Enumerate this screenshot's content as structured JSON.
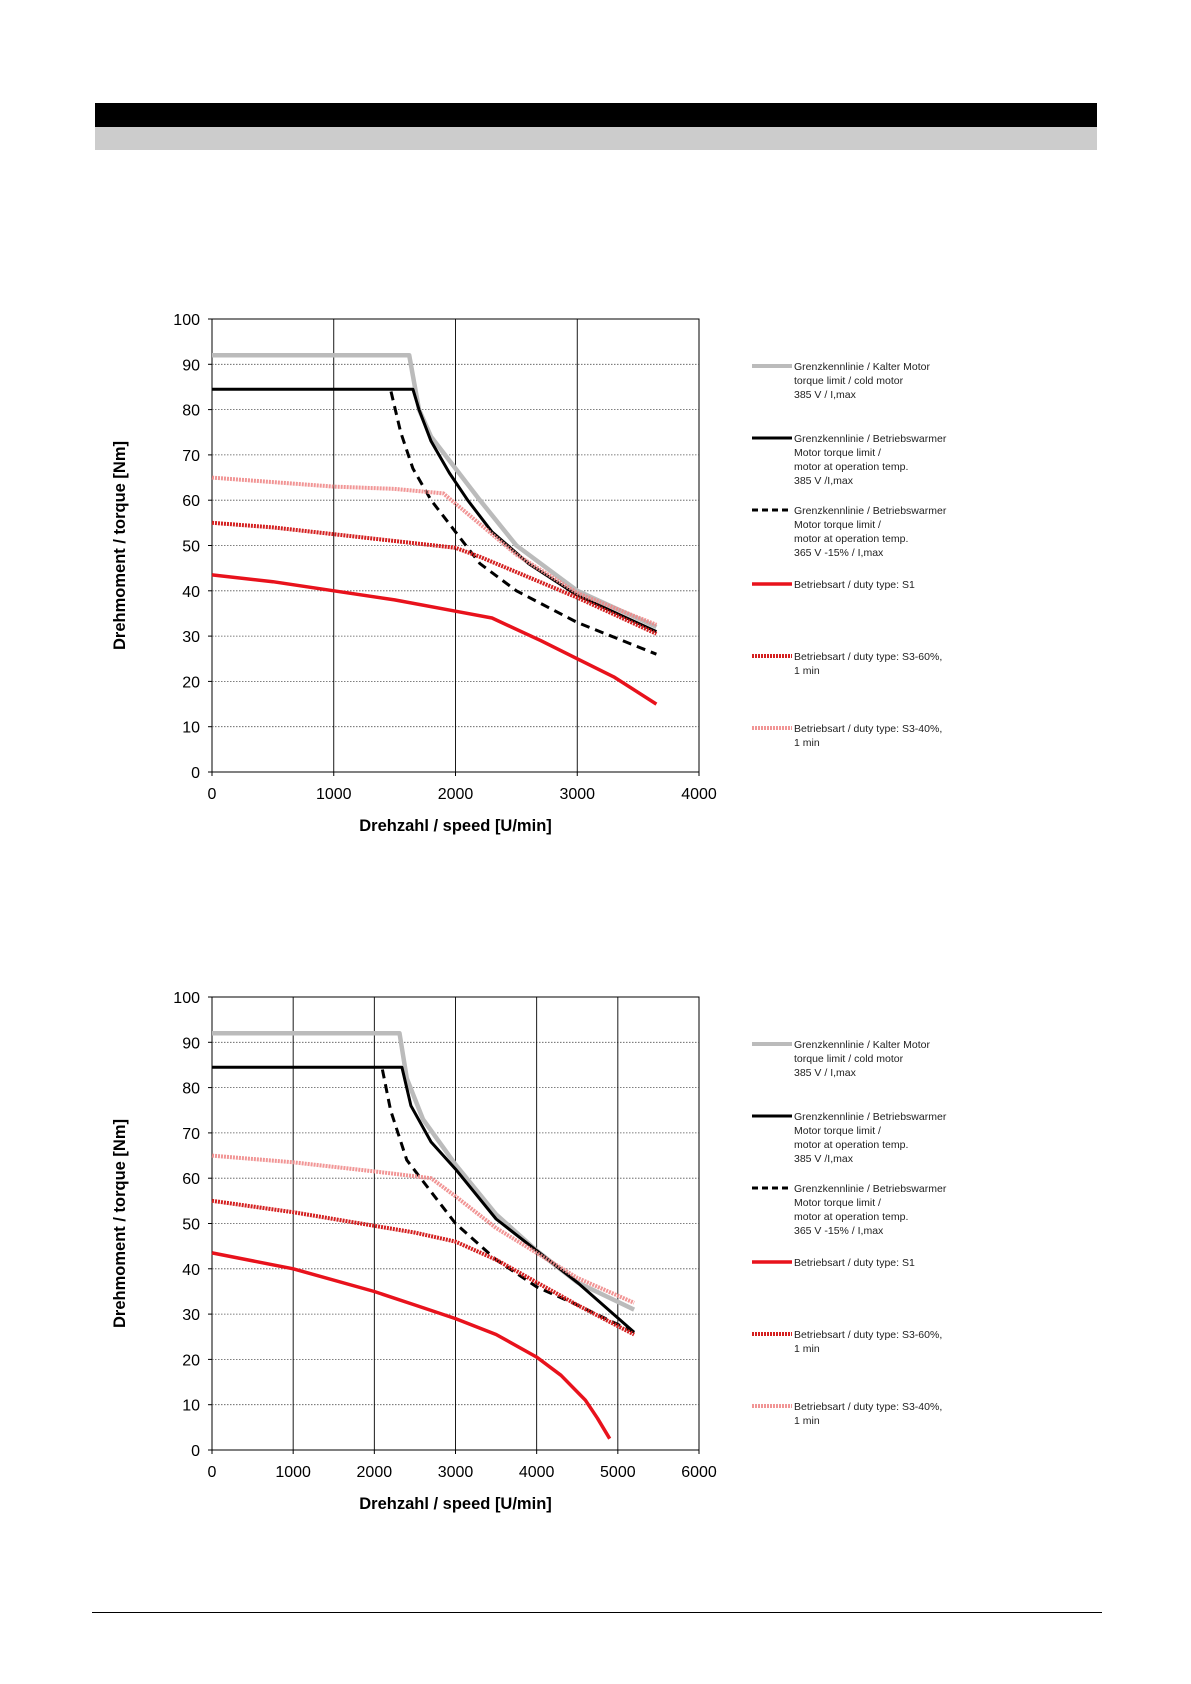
{
  "chart_data": [
    {
      "type": "line",
      "title": "",
      "xlabel": "Drehzahl / speed [U/min]",
      "ylabel": "Drehmoment  / torque [Nm]",
      "xlim": [
        0,
        4000
      ],
      "ylim": [
        0,
        100
      ],
      "xticks": [
        0,
        1000,
        2000,
        3000,
        4000
      ],
      "yticks": [
        0,
        10,
        20,
        30,
        40,
        50,
        60,
        70,
        80,
        90,
        100
      ],
      "grid": true,
      "legend_position": "right",
      "series": [
        {
          "name": "Grenzkennlinie / Kalter Motor\ntorque limit / cold  motor\n385 V / I,max",
          "color": "#bbbbbb",
          "style": "solid-gray",
          "x": [
            0,
            1620,
            1700,
            1800,
            2000,
            2200,
            2500,
            3000,
            3650
          ],
          "y": [
            92,
            92,
            80,
            74,
            67,
            60,
            50,
            40,
            32
          ]
        },
        {
          "name": "Grenzkennlinie / Betriebswarmer\nMotor              torque limit /\nmotor at operation temp.\n385 V /I,max",
          "color": "#000000",
          "style": "solid-black",
          "x": [
            0,
            1650,
            1700,
            1800,
            1950,
            2100,
            2300,
            2600,
            3000,
            3650
          ],
          "y": [
            84.5,
            84.5,
            80,
            73,
            66,
            60,
            53,
            46,
            39,
            31
          ]
        },
        {
          "name": "Grenzkennlinie / Betriebswarmer\nMotor              torque limit /\nmotor at operation temp.\n365 V  -15% / I,max",
          "color": "#000000",
          "style": "dashed-black",
          "x": [
            1470,
            1550,
            1650,
            1800,
            2000,
            2200,
            2500,
            3000,
            3650
          ],
          "y": [
            84,
            75,
            67,
            60,
            53,
            46,
            40,
            33,
            26
          ]
        },
        {
          "name": "Betriebsart / duty type: S1",
          "color": "#e8121c",
          "style": "solid-red",
          "x": [
            0,
            500,
            1000,
            1500,
            2000,
            2300,
            2700,
            3000,
            3300,
            3650
          ],
          "y": [
            43.5,
            42,
            40,
            38,
            35.5,
            34,
            29,
            25,
            21,
            15
          ]
        },
        {
          "name": "Betriebsart / duty type: S3-60%,\n1 min",
          "color": "#d42020",
          "style": "hatched-red",
          "x": [
            0,
            500,
            1000,
            1500,
            2000,
            2200,
            2600,
            3000,
            3650
          ],
          "y": [
            55,
            54,
            52.5,
            51,
            49.5,
            47.5,
            43,
            38.5,
            30.5
          ]
        },
        {
          "name": "Betriebsart / duty type: S3-40%,\n1 min",
          "color": "#f08a8a",
          "style": "hatched-pink",
          "x": [
            0,
            500,
            1000,
            1500,
            1900,
            2100,
            2500,
            3000,
            3650
          ],
          "y": [
            65,
            64,
            63,
            62.5,
            61.5,
            57,
            48,
            39.5,
            32.5
          ]
        }
      ]
    },
    {
      "type": "line",
      "title": "",
      "xlabel": "Drehzahl / speed [U/min]",
      "ylabel": "Drehmoment  / torque [Nm]",
      "xlim": [
        0,
        6000
      ],
      "ylim": [
        0,
        100
      ],
      "xticks": [
        0,
        1000,
        2000,
        3000,
        4000,
        5000,
        6000
      ],
      "yticks": [
        0,
        10,
        20,
        30,
        40,
        50,
        60,
        70,
        80,
        90,
        100
      ],
      "grid": true,
      "legend_position": "right",
      "series": [
        {
          "name": "Grenzkennlinie / Kalter Motor\ntorque limit / cold  motor\n385 V / I,max",
          "color": "#bbbbbb",
          "style": "solid-gray",
          "x": [
            0,
            2310,
            2400,
            2600,
            3000,
            3500,
            4000,
            4500,
            5200
          ],
          "y": [
            92,
            92,
            82,
            73,
            63,
            52,
            44,
            37,
            31
          ]
        },
        {
          "name": "Grenzkennlinie / Betriebswarmer\nMotor              torque limit /\nmotor at operation temp.\n385 V /I,max",
          "color": "#000000",
          "style": "solid-black",
          "x": [
            0,
            2340,
            2450,
            2700,
            3000,
            3500,
            4000,
            4500,
            5200
          ],
          "y": [
            84.5,
            84.5,
            76,
            68,
            62,
            51,
            44,
            37,
            26
          ]
        },
        {
          "name": "Grenzkennlinie / Betriebswarmer\nMotor              torque limit /\nmotor at operation temp.\n365 V  -15% / I,max",
          "color": "#000000",
          "style": "dashed-black",
          "x": [
            2100,
            2200,
            2400,
            2700,
            3000,
            3500,
            4000,
            4500,
            5200
          ],
          "y": [
            84,
            75,
            64,
            57,
            50,
            42,
            36,
            32,
            26
          ]
        },
        {
          "name": "Betriebsart / duty type: S1",
          "color": "#e8121c",
          "style": "solid-red",
          "x": [
            0,
            1000,
            2000,
            2500,
            3000,
            3500,
            4000,
            4300,
            4600,
            4750,
            4900
          ],
          "y": [
            43.5,
            40,
            35,
            32,
            29,
            25.5,
            20.5,
            16.5,
            11,
            7,
            2.5
          ]
        },
        {
          "name": "Betriebsart / duty type: S3-60%,\n1 min",
          "color": "#d42020",
          "style": "hatched-red",
          "x": [
            0,
            1000,
            2000,
            2500,
            3000,
            3500,
            4000,
            4500,
            5200
          ],
          "y": [
            55,
            52.5,
            49.5,
            48,
            46,
            42,
            37,
            32,
            25.5
          ]
        },
        {
          "name": "Betriebsart / duty type: S3-40%,\n1 min",
          "color": "#f08a8a",
          "style": "hatched-pink",
          "x": [
            0,
            1000,
            2000,
            2700,
            3000,
            3500,
            4000,
            4500,
            5200
          ],
          "y": [
            65,
            63.5,
            61.5,
            60,
            56,
            49,
            43.5,
            38,
            32.5
          ]
        }
      ]
    }
  ]
}
